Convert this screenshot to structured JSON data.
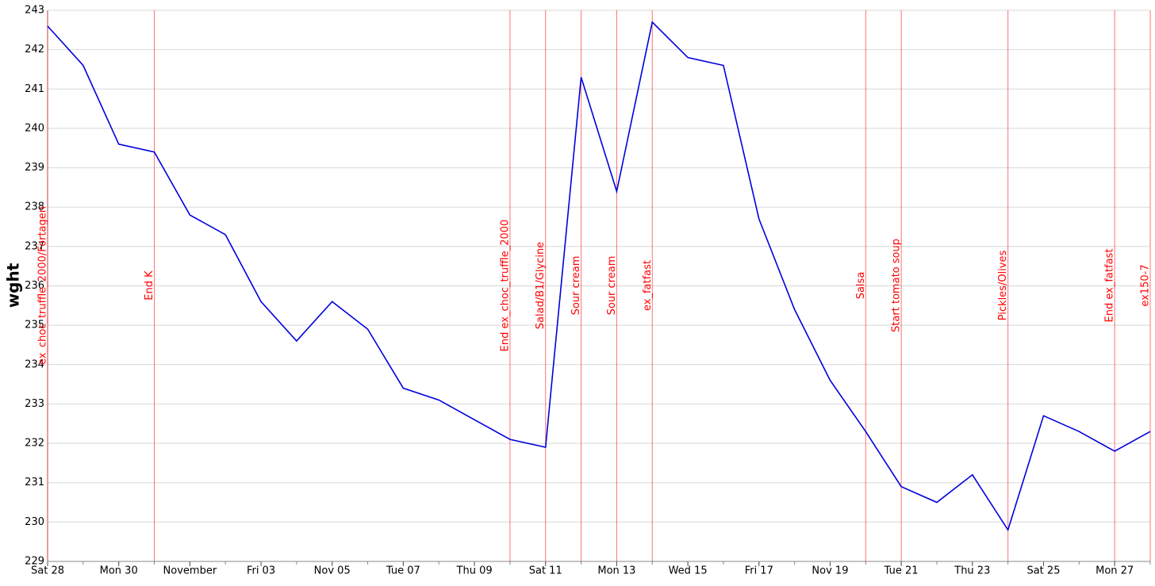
{
  "chart_data": {
    "type": "line",
    "y_label": "wght",
    "x": [
      0,
      1,
      2,
      3,
      4,
      5,
      6,
      7,
      8,
      9,
      10,
      11,
      12,
      13,
      14,
      15,
      16,
      17,
      18,
      19,
      20,
      21,
      22,
      23,
      24,
      25,
      26,
      27,
      28,
      29,
      30,
      31
    ],
    "series": [
      {
        "name": "wght",
        "color": "#0000dd",
        "values": [
          242.6,
          241.6,
          239.6,
          239.4,
          237.8,
          237.3,
          235.6,
          234.6,
          235.6,
          234.9,
          233.4,
          233.1,
          232.6,
          232.1,
          231.9,
          241.3,
          238.4,
          242.7,
          241.8,
          241.6,
          237.7,
          235.4,
          233.6,
          232.3,
          230.9,
          230.5,
          231.2,
          229.8,
          232.7,
          232.3,
          231.8,
          232.3
        ]
      }
    ],
    "xlim": [
      0,
      31
    ],
    "xticks": [
      {
        "value": 0,
        "label": "Sat 28"
      },
      {
        "value": 2,
        "label": "Mon 30"
      },
      {
        "value": 4,
        "label": "November"
      },
      {
        "value": 6,
        "label": "Fri 03"
      },
      {
        "value": 8,
        "label": "Nov 05"
      },
      {
        "value": 10,
        "label": "Tue 07"
      },
      {
        "value": 12,
        "label": "Thu 09"
      },
      {
        "value": 14,
        "label": "Sat 11"
      },
      {
        "value": 16,
        "label": "Mon 13"
      },
      {
        "value": 18,
        "label": "Wed 15"
      },
      {
        "value": 20,
        "label": "Fri 17"
      },
      {
        "value": 22,
        "label": "Nov 19"
      },
      {
        "value": 24,
        "label": "Tue 21"
      },
      {
        "value": 26,
        "label": "Thu 23"
      },
      {
        "value": 28,
        "label": "Sat 25"
      },
      {
        "value": 30,
        "label": "Mon 27"
      }
    ],
    "ylim": [
      229,
      243
    ],
    "yticks": [
      229,
      230,
      231,
      232,
      233,
      234,
      235,
      236,
      237,
      238,
      239,
      240,
      241,
      242,
      243
    ],
    "grid": true,
    "annotations": [
      {
        "x": 0,
        "label": "ex_choc_truffle_2000/Fortagen"
      },
      {
        "x": 3,
        "label": "End K"
      },
      {
        "x": 13,
        "label": "End ex_choc_truffle_2000"
      },
      {
        "x": 14,
        "label": "Salad/B1/Glycine"
      },
      {
        "x": 15,
        "label": "Sour cream"
      },
      {
        "x": 16,
        "label": "Sour cream"
      },
      {
        "x": 17,
        "label": "ex_fatfast"
      },
      {
        "x": 23,
        "label": "Salsa"
      },
      {
        "x": 24,
        "label": "Start tomato soup"
      },
      {
        "x": 27,
        "label": "Pickles/Olives"
      },
      {
        "x": 30,
        "label": "End ex_fatfast"
      },
      {
        "x": 31,
        "label": "ex150-7"
      }
    ],
    "annotation_color": "#ff0000"
  }
}
